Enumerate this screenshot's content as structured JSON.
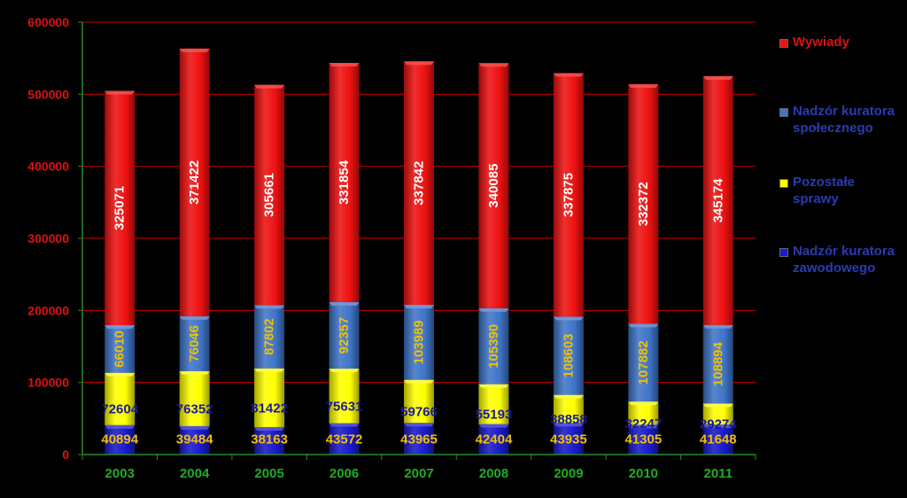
{
  "chart_data": {
    "type": "bar",
    "stacked": true,
    "categories": [
      "2003",
      "2004",
      "2005",
      "2006",
      "2007",
      "2008",
      "2009",
      "2010",
      "2011"
    ],
    "series": [
      {
        "name": "Nadzór kuratora zawodowego",
        "color": "#1a1acc",
        "label_color": "#f0c000",
        "values": [
          40894,
          39484,
          38163,
          43572,
          43965,
          42404,
          43935,
          41305,
          41648
        ]
      },
      {
        "name": "Pozostałe sprawy",
        "color": "#ffff00",
        "label_color": "#1a1a99",
        "values": [
          72604,
          76352,
          81422,
          75631,
          59766,
          55193,
          38858,
          32247,
          29274
        ]
      },
      {
        "name": "Nadzór kuratora społecznego",
        "color": "#3f75c8",
        "label_color": "#f0c000",
        "values": [
          66010,
          76046,
          87802,
          92357,
          103989,
          105390,
          108603,
          107882,
          108894
        ]
      },
      {
        "name": "Wywiady",
        "color": "#ee1111",
        "label_color": "#ffffff",
        "values": [
          325071,
          371422,
          305661,
          331854,
          337842,
          340085,
          337875,
          332372,
          345174
        ]
      }
    ],
    "yticks": [
      "0",
      "100000",
      "200000",
      "300000",
      "400000",
      "500000",
      "600000"
    ],
    "ylim": [
      0,
      600000
    ],
    "grid": true,
    "legend_position": "right",
    "legend_order": [
      "Wywiady",
      "Nadzór kuratora społecznego",
      "Pozostałe sprawy",
      "Nadzór kuratora zawodowego"
    ],
    "colors": {
      "background": "#000000",
      "gridline": "#cc0000",
      "axis": "#2a8a2a",
      "ytick_text": "#dd1111",
      "xtick_text": "#22aa22",
      "legend_wywiady_text": "#dd1111",
      "legend_text": "#2b3bb0"
    }
  }
}
